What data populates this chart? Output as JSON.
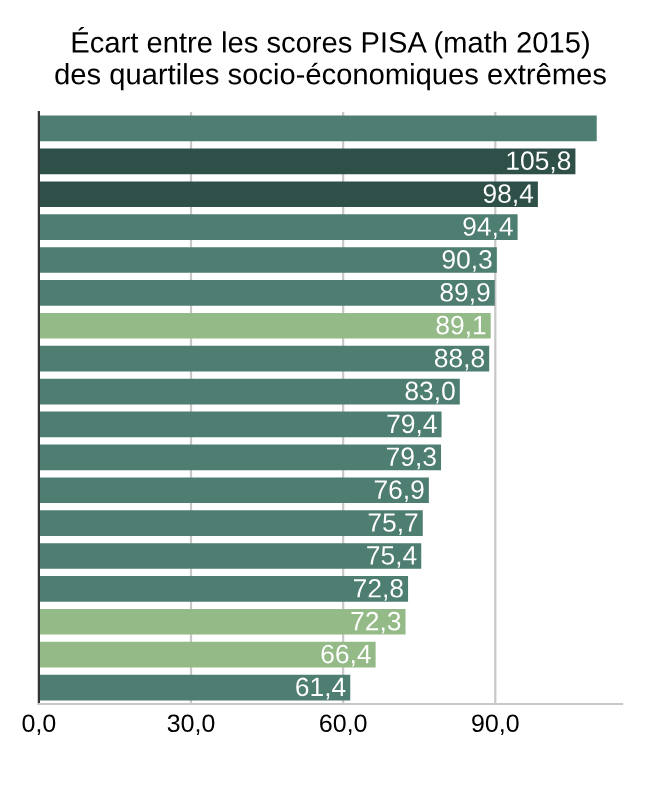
{
  "chart_data": {
    "type": "bar",
    "orientation": "horizontal",
    "title": "Écart entre les scores PISA (math 2015)\ndes quartiles socio-économiques extrêmes",
    "categories": [
      null,
      null,
      null,
      null,
      null,
      null,
      null,
      null,
      null,
      null,
      null,
      null,
      null,
      null,
      null,
      null,
      null,
      null
    ],
    "values": [
      110,
      105.8,
      98.4,
      94.4,
      90.3,
      89.9,
      89.1,
      88.8,
      83.0,
      79.4,
      79.3,
      76.9,
      75.7,
      75.4,
      72.8,
      72.3,
      66.4,
      61.4
    ],
    "value_labels": [
      null,
      "105,8",
      "98,4",
      "94,4",
      "90,3",
      "89,9",
      "89,1",
      "88,8",
      "83,0",
      "79,4",
      "79,3",
      "76,9",
      "75,7",
      "75,4",
      "72,8",
      "72,3",
      "66,4",
      "61,4"
    ],
    "colors": [
      "#4e7d72",
      "#2f5049",
      "#2f5049",
      "#4e7d72",
      "#4e7d72",
      "#4e7d72",
      "#94bb87",
      "#4e7d72",
      "#4e7d72",
      "#4e7d72",
      "#4e7d72",
      "#4e7d72",
      "#4e7d72",
      "#4e7d72",
      "#4e7d72",
      "#94bb87",
      "#94bb87",
      "#4e7d72"
    ],
    "xlim": [
      0,
      115
    ],
    "xticks": [
      {
        "value": 0,
        "label": "0,0"
      },
      {
        "value": 30,
        "label": "30,0"
      },
      {
        "value": 60,
        "label": "60,0"
      },
      {
        "value": 90,
        "label": "90,0"
      }
    ],
    "grid": "x",
    "tick_labels": "x"
  }
}
